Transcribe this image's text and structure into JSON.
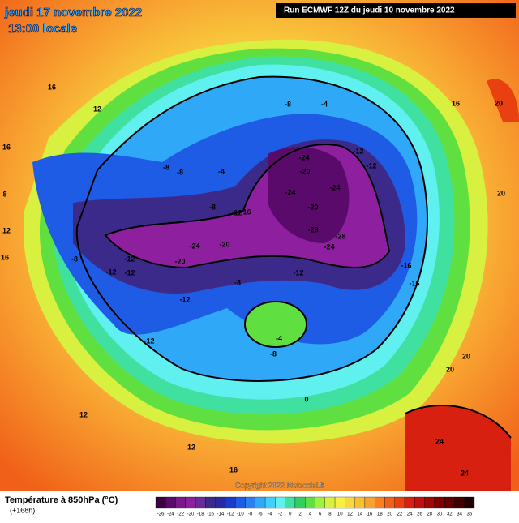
{
  "header": {
    "date": "jeudi 17 novembre 2022",
    "time": "13:00 locale",
    "run": "Run ECMWF 12Z du jeudi 10 novembre 2022"
  },
  "footer": {
    "title": "Température à 850hPa (°C)",
    "lead": "(+168h)",
    "copyright": "Copyright 2022 Meteociel.fr"
  },
  "scale": {
    "labels": [
      -26,
      -24,
      -22,
      -20,
      -18,
      -16,
      -14,
      -12,
      -10,
      -8,
      -6,
      -4,
      -2,
      0,
      2,
      4,
      6,
      8,
      10,
      12,
      14,
      16,
      18,
      20,
      22,
      24,
      26,
      28,
      30,
      32,
      34,
      36
    ],
    "colors": [
      "#3a0040",
      "#5a0a6a",
      "#7a1a8a",
      "#8e1f9e",
      "#6a2a9a",
      "#3c2a8a",
      "#2a2aa0",
      "#1a3ccc",
      "#1e5ce6",
      "#2a80f0",
      "#30a8f8",
      "#40d0ff",
      "#60f0f0",
      "#40e0a0",
      "#30d060",
      "#60e040",
      "#a0f040",
      "#d8f040",
      "#f8f040",
      "#f8d840",
      "#f8c030",
      "#f8a030",
      "#f88020",
      "#f06018",
      "#e84010",
      "#d82010",
      "#c01010",
      "#a00808",
      "#800000",
      "#600000",
      "#400000",
      "#200000"
    ]
  },
  "map_labels": [
    -24,
    -20,
    -24,
    -24,
    -20,
    -28,
    -28,
    -24,
    -24,
    -20,
    -20,
    -16,
    -12,
    -12,
    -12,
    -12,
    -8,
    -12,
    -8,
    -12,
    -16,
    -16,
    -12,
    -12,
    -8,
    -4,
    -8,
    -8,
    -4,
    -8,
    -12,
    0,
    -4,
    -8,
    16,
    12,
    16,
    20,
    20,
    20,
    20,
    24,
    24,
    12,
    12,
    16,
    12,
    16,
    8,
    16
  ]
}
